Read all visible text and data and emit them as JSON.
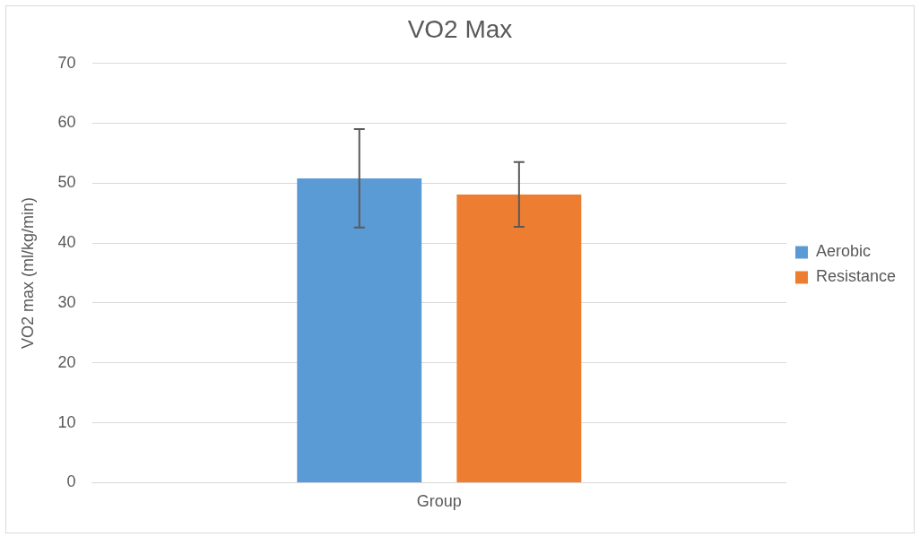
{
  "chart_data": {
    "type": "bar",
    "title": "VO2 Max",
    "ylabel": "VO2 max (ml/kg/min)",
    "categories": [
      "Group"
    ],
    "series": [
      {
        "name": "Aerobic",
        "color": "#5b9bd5",
        "values": [
          50.8
        ],
        "errors": [
          8.2
        ]
      },
      {
        "name": "Resistance",
        "color": "#ed7d31",
        "values": [
          48.1
        ],
        "errors": [
          5.4
        ]
      }
    ],
    "ylim": [
      0,
      70
    ],
    "yticks": [
      0,
      10,
      20,
      30,
      40,
      50,
      60,
      70
    ],
    "grid": "y",
    "legend": "right"
  }
}
